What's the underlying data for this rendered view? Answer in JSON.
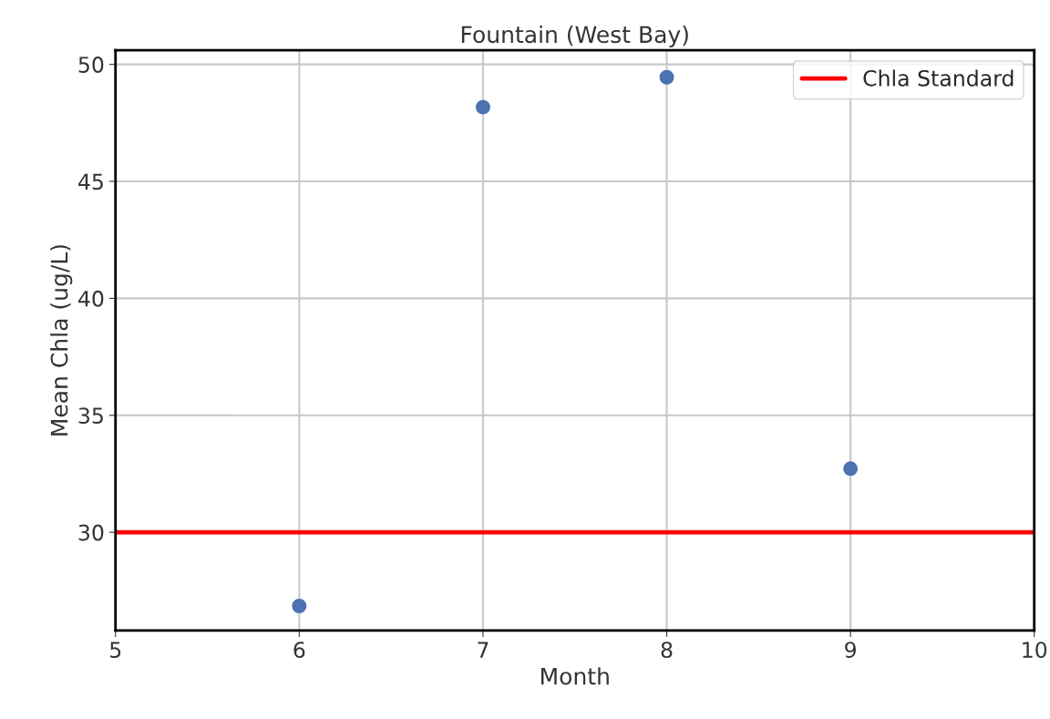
{
  "chart_data": {
    "type": "scatter",
    "title": "Fountain (West Bay)",
    "xlabel": "Month",
    "ylabel": "Mean Chla (ug/L)",
    "x": [
      6,
      7,
      8,
      9
    ],
    "series": [
      {
        "color": "#4c72b0",
        "values": [
          26.85,
          48.17,
          49.45,
          32.72
        ]
      }
    ],
    "xlim": [
      5,
      10
    ],
    "xticks": [
      5,
      6,
      7,
      8,
      9,
      10
    ],
    "ylim": [
      25.8,
      50.6
    ],
    "yticks": [
      30,
      35,
      40,
      45,
      50
    ],
    "ref_lines": [
      {
        "axis": "y",
        "value": 30,
        "label": "Chla Standard",
        "color": "#ff0000",
        "line_style": "solid"
      }
    ],
    "grid": true,
    "legend": "top right",
    "marker": "circle"
  }
}
